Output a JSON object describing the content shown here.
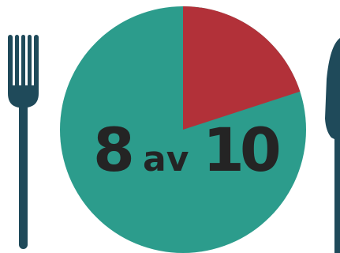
{
  "colors": {
    "pie_main": "#2c9c8c",
    "pie_slice": "#b23139",
    "cutlery": "#1f4a5a",
    "text": "#242424"
  },
  "icons": {
    "left": "fork-icon",
    "right": "knife-icon"
  },
  "pie": {
    "highlighted_fraction": 0.2,
    "remaining_fraction": 0.8
  },
  "label": {
    "numerator": "8",
    "word": "av",
    "denominator": "10"
  }
}
